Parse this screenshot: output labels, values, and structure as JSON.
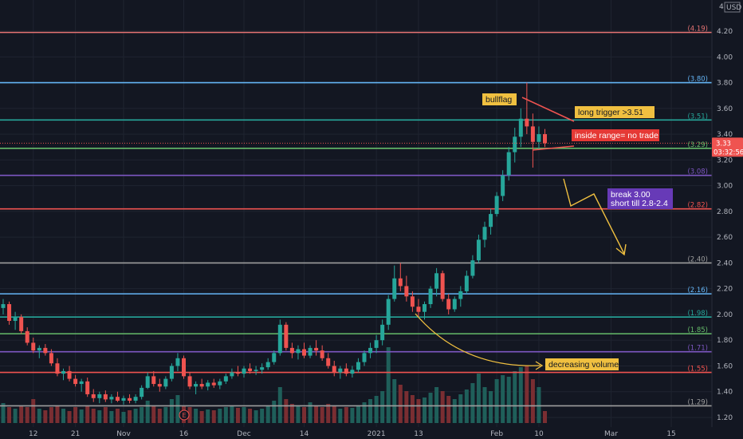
{
  "chart_data": {
    "type": "candlestick",
    "currency": "USD",
    "scale_marker": "4",
    "y_range": [
      1.16,
      4.36
    ],
    "y_ticks": [
      "1.20",
      "1.40",
      "1.60",
      "1.80",
      "2.00",
      "2.20",
      "2.40",
      "2.60",
      "2.80",
      "3.00",
      "3.20",
      "3.40",
      "3.60",
      "3.80",
      "4.00",
      "4.20"
    ],
    "x_ticks": [
      {
        "label": "12",
        "bar": 5
      },
      {
        "label": "21",
        "bar": 12
      },
      {
        "label": "Nov",
        "bar": 20
      },
      {
        "label": "16",
        "bar": 30
      },
      {
        "label": "Dec",
        "bar": 40
      },
      {
        "label": "14",
        "bar": 50
      },
      {
        "label": "2021",
        "bar": 62
      },
      {
        "label": "13",
        "bar": 69
      },
      {
        "label": "Feb",
        "bar": 82
      },
      {
        "label": "10",
        "bar": 89
      },
      {
        "label": "Mar",
        "bar": 101
      },
      {
        "label": "15",
        "bar": 111
      }
    ],
    "last_price": "3.33",
    "countdown": "03:32:56",
    "levels": [
      {
        "label": "(4.19)",
        "value": 4.19,
        "color": "#e57373"
      },
      {
        "label": "(3.80)",
        "value": 3.8,
        "color": "#64b5f6"
      },
      {
        "label": "(3.51)",
        "value": 3.51,
        "color": "#26a69a"
      },
      {
        "label": "(3.29)",
        "value": 3.29,
        "color": "#66bb6a"
      },
      {
        "label": "(3.08)",
        "value": 3.08,
        "color": "#7e57c2"
      },
      {
        "label": "(2.82)",
        "value": 2.82,
        "color": "#ef5350"
      },
      {
        "label": "(2.40)",
        "value": 2.4,
        "color": "#9e9e9e"
      },
      {
        "label": "(2.16)",
        "value": 2.16,
        "color": "#64b5f6"
      },
      {
        "label": "(1.98)",
        "value": 1.98,
        "color": "#26a69a"
      },
      {
        "label": "(1.85)",
        "value": 1.85,
        "color": "#66bb6a"
      },
      {
        "label": "(1.71)",
        "value": 1.71,
        "color": "#7e57c2"
      },
      {
        "label": "(1.55)",
        "value": 1.55,
        "color": "#ef5350"
      },
      {
        "label": "(1.29)",
        "value": 1.29,
        "color": "#9e9e9e"
      }
    ],
    "candles": [
      [
        2.05,
        2.12,
        2.0,
        2.08
      ],
      [
        2.08,
        2.1,
        1.92,
        1.95
      ],
      [
        1.95,
        2.02,
        1.88,
        1.98
      ],
      [
        1.98,
        2.0,
        1.85,
        1.87
      ],
      [
        1.87,
        1.9,
        1.76,
        1.78
      ],
      [
        1.78,
        1.82,
        1.7,
        1.72
      ],
      [
        1.72,
        1.76,
        1.66,
        1.74
      ],
      [
        1.74,
        1.77,
        1.68,
        1.7
      ],
      [
        1.7,
        1.73,
        1.6,
        1.62
      ],
      [
        1.62,
        1.66,
        1.52,
        1.54
      ],
      [
        1.54,
        1.58,
        1.49,
        1.56
      ],
      [
        1.56,
        1.6,
        1.48,
        1.5
      ],
      [
        1.5,
        1.53,
        1.44,
        1.46
      ],
      [
        1.46,
        1.5,
        1.4,
        1.48
      ],
      [
        1.48,
        1.51,
        1.36,
        1.38
      ],
      [
        1.38,
        1.42,
        1.32,
        1.35
      ],
      [
        1.35,
        1.4,
        1.31,
        1.38
      ],
      [
        1.38,
        1.41,
        1.32,
        1.34
      ],
      [
        1.34,
        1.38,
        1.31,
        1.36
      ],
      [
        1.36,
        1.4,
        1.32,
        1.33
      ],
      [
        1.33,
        1.37,
        1.3,
        1.35
      ],
      [
        1.35,
        1.38,
        1.31,
        1.33
      ],
      [
        1.33,
        1.38,
        1.31,
        1.36
      ],
      [
        1.36,
        1.45,
        1.34,
        1.43
      ],
      [
        1.43,
        1.55,
        1.42,
        1.52
      ],
      [
        1.52,
        1.56,
        1.44,
        1.46
      ],
      [
        1.46,
        1.5,
        1.4,
        1.44
      ],
      [
        1.44,
        1.52,
        1.42,
        1.5
      ],
      [
        1.5,
        1.62,
        1.48,
        1.6
      ],
      [
        1.6,
        1.7,
        1.56,
        1.66
      ],
      [
        1.66,
        1.68,
        1.5,
        1.52
      ],
      [
        1.52,
        1.55,
        1.42,
        1.44
      ],
      [
        1.44,
        1.48,
        1.38,
        1.46
      ],
      [
        1.46,
        1.5,
        1.42,
        1.44
      ],
      [
        1.44,
        1.49,
        1.41,
        1.47
      ],
      [
        1.47,
        1.5,
        1.43,
        1.45
      ],
      [
        1.45,
        1.5,
        1.42,
        1.48
      ],
      [
        1.48,
        1.54,
        1.46,
        1.52
      ],
      [
        1.52,
        1.58,
        1.5,
        1.55
      ],
      [
        1.55,
        1.6,
        1.52,
        1.54
      ],
      [
        1.54,
        1.6,
        1.51,
        1.58
      ],
      [
        1.58,
        1.62,
        1.54,
        1.56
      ],
      [
        1.56,
        1.6,
        1.53,
        1.57
      ],
      [
        1.57,
        1.62,
        1.54,
        1.59
      ],
      [
        1.59,
        1.66,
        1.57,
        1.63
      ],
      [
        1.63,
        1.72,
        1.61,
        1.7
      ],
      [
        1.7,
        1.96,
        1.68,
        1.92
      ],
      [
        1.92,
        1.94,
        1.72,
        1.74
      ],
      [
        1.74,
        1.78,
        1.66,
        1.7
      ],
      [
        1.7,
        1.76,
        1.65,
        1.73
      ],
      [
        1.73,
        1.78,
        1.66,
        1.68
      ],
      [
        1.68,
        1.76,
        1.66,
        1.74
      ],
      [
        1.74,
        1.8,
        1.68,
        1.72
      ],
      [
        1.72,
        1.76,
        1.64,
        1.66
      ],
      [
        1.66,
        1.7,
        1.58,
        1.6
      ],
      [
        1.6,
        1.64,
        1.52,
        1.55
      ],
      [
        1.55,
        1.6,
        1.5,
        1.58
      ],
      [
        1.58,
        1.62,
        1.52,
        1.54
      ],
      [
        1.54,
        1.6,
        1.51,
        1.57
      ],
      [
        1.57,
        1.66,
        1.55,
        1.63
      ],
      [
        1.63,
        1.72,
        1.6,
        1.7
      ],
      [
        1.7,
        1.78,
        1.66,
        1.74
      ],
      [
        1.74,
        1.84,
        1.7,
        1.8
      ],
      [
        1.8,
        1.96,
        1.76,
        1.92
      ],
      [
        1.92,
        2.15,
        1.88,
        2.12
      ],
      [
        2.12,
        2.38,
        2.1,
        2.28
      ],
      [
        2.28,
        2.4,
        2.18,
        2.22
      ],
      [
        2.22,
        2.3,
        2.1,
        2.14
      ],
      [
        2.14,
        2.18,
        2.02,
        2.06
      ],
      [
        2.06,
        2.12,
        1.98,
        2.02
      ],
      [
        2.02,
        2.1,
        1.96,
        2.08
      ],
      [
        2.08,
        2.22,
        2.05,
        2.2
      ],
      [
        2.2,
        2.36,
        2.14,
        2.32
      ],
      [
        2.32,
        2.34,
        2.1,
        2.12
      ],
      [
        2.12,
        2.16,
        2.0,
        2.04
      ],
      [
        2.04,
        2.14,
        2.02,
        2.12
      ],
      [
        2.12,
        2.22,
        2.06,
        2.18
      ],
      [
        2.18,
        2.34,
        2.16,
        2.3
      ],
      [
        2.3,
        2.46,
        2.28,
        2.42
      ],
      [
        2.42,
        2.62,
        2.4,
        2.58
      ],
      [
        2.58,
        2.72,
        2.52,
        2.68
      ],
      [
        2.68,
        2.82,
        2.62,
        2.78
      ],
      [
        2.78,
        2.95,
        2.76,
        2.92
      ],
      [
        2.92,
        3.12,
        2.88,
        3.08
      ],
      [
        3.08,
        3.3,
        3.04,
        3.26
      ],
      [
        3.26,
        3.45,
        3.18,
        3.38
      ],
      [
        3.38,
        3.6,
        3.3,
        3.52
      ],
      [
        3.52,
        3.8,
        3.4,
        3.46
      ],
      [
        3.46,
        3.56,
        3.14,
        3.34
      ],
      [
        3.34,
        3.46,
        3.28,
        3.4
      ],
      [
        3.4,
        3.44,
        3.3,
        3.33
      ]
    ],
    "volume_max": 1.0,
    "volume": [
      0.25,
      0.2,
      0.18,
      0.22,
      0.2,
      0.3,
      0.18,
      0.16,
      0.2,
      0.22,
      0.18,
      0.15,
      0.2,
      0.17,
      0.22,
      0.18,
      0.16,
      0.2,
      0.15,
      0.18,
      0.14,
      0.16,
      0.18,
      0.2,
      0.28,
      0.22,
      0.18,
      0.2,
      0.3,
      0.35,
      0.22,
      0.2,
      0.18,
      0.15,
      0.17,
      0.16,
      0.18,
      0.2,
      0.22,
      0.19,
      0.2,
      0.18,
      0.16,
      0.18,
      0.22,
      0.28,
      0.45,
      0.3,
      0.24,
      0.22,
      0.2,
      0.26,
      0.22,
      0.2,
      0.24,
      0.22,
      0.18,
      0.2,
      0.19,
      0.22,
      0.26,
      0.3,
      0.34,
      0.4,
      0.95,
      0.55,
      0.48,
      0.4,
      0.35,
      0.3,
      0.32,
      0.38,
      0.45,
      0.4,
      0.34,
      0.3,
      0.36,
      0.42,
      0.5,
      0.62,
      0.45,
      0.4,
      0.55,
      0.6,
      0.58,
      0.65,
      0.7,
      0.72,
      0.55,
      0.45,
      0.15
    ],
    "annotations": [
      {
        "text": "bullflag",
        "fill": "#f0c040",
        "text_color": "#131722"
      },
      {
        "text": "long trigger >3.51",
        "fill": "#f0c040",
        "text_color": "#131722"
      },
      {
        "text": "inside range= no trade",
        "fill": "#e53935",
        "text_color": "#ffffff"
      },
      {
        "text": "break 3.00",
        "text2": "short till 2.8-2.4",
        "fill": "#673ab7",
        "text_color": "#ffffff"
      },
      {
        "text": "decreasing volume",
        "fill": "#f0c040",
        "text_color": "#131722"
      }
    ],
    "earnings_marker": "E",
    "colors": {
      "up": "#26a69a",
      "down": "#ef5350",
      "background": "#131722",
      "grid": "#1f2430"
    }
  }
}
